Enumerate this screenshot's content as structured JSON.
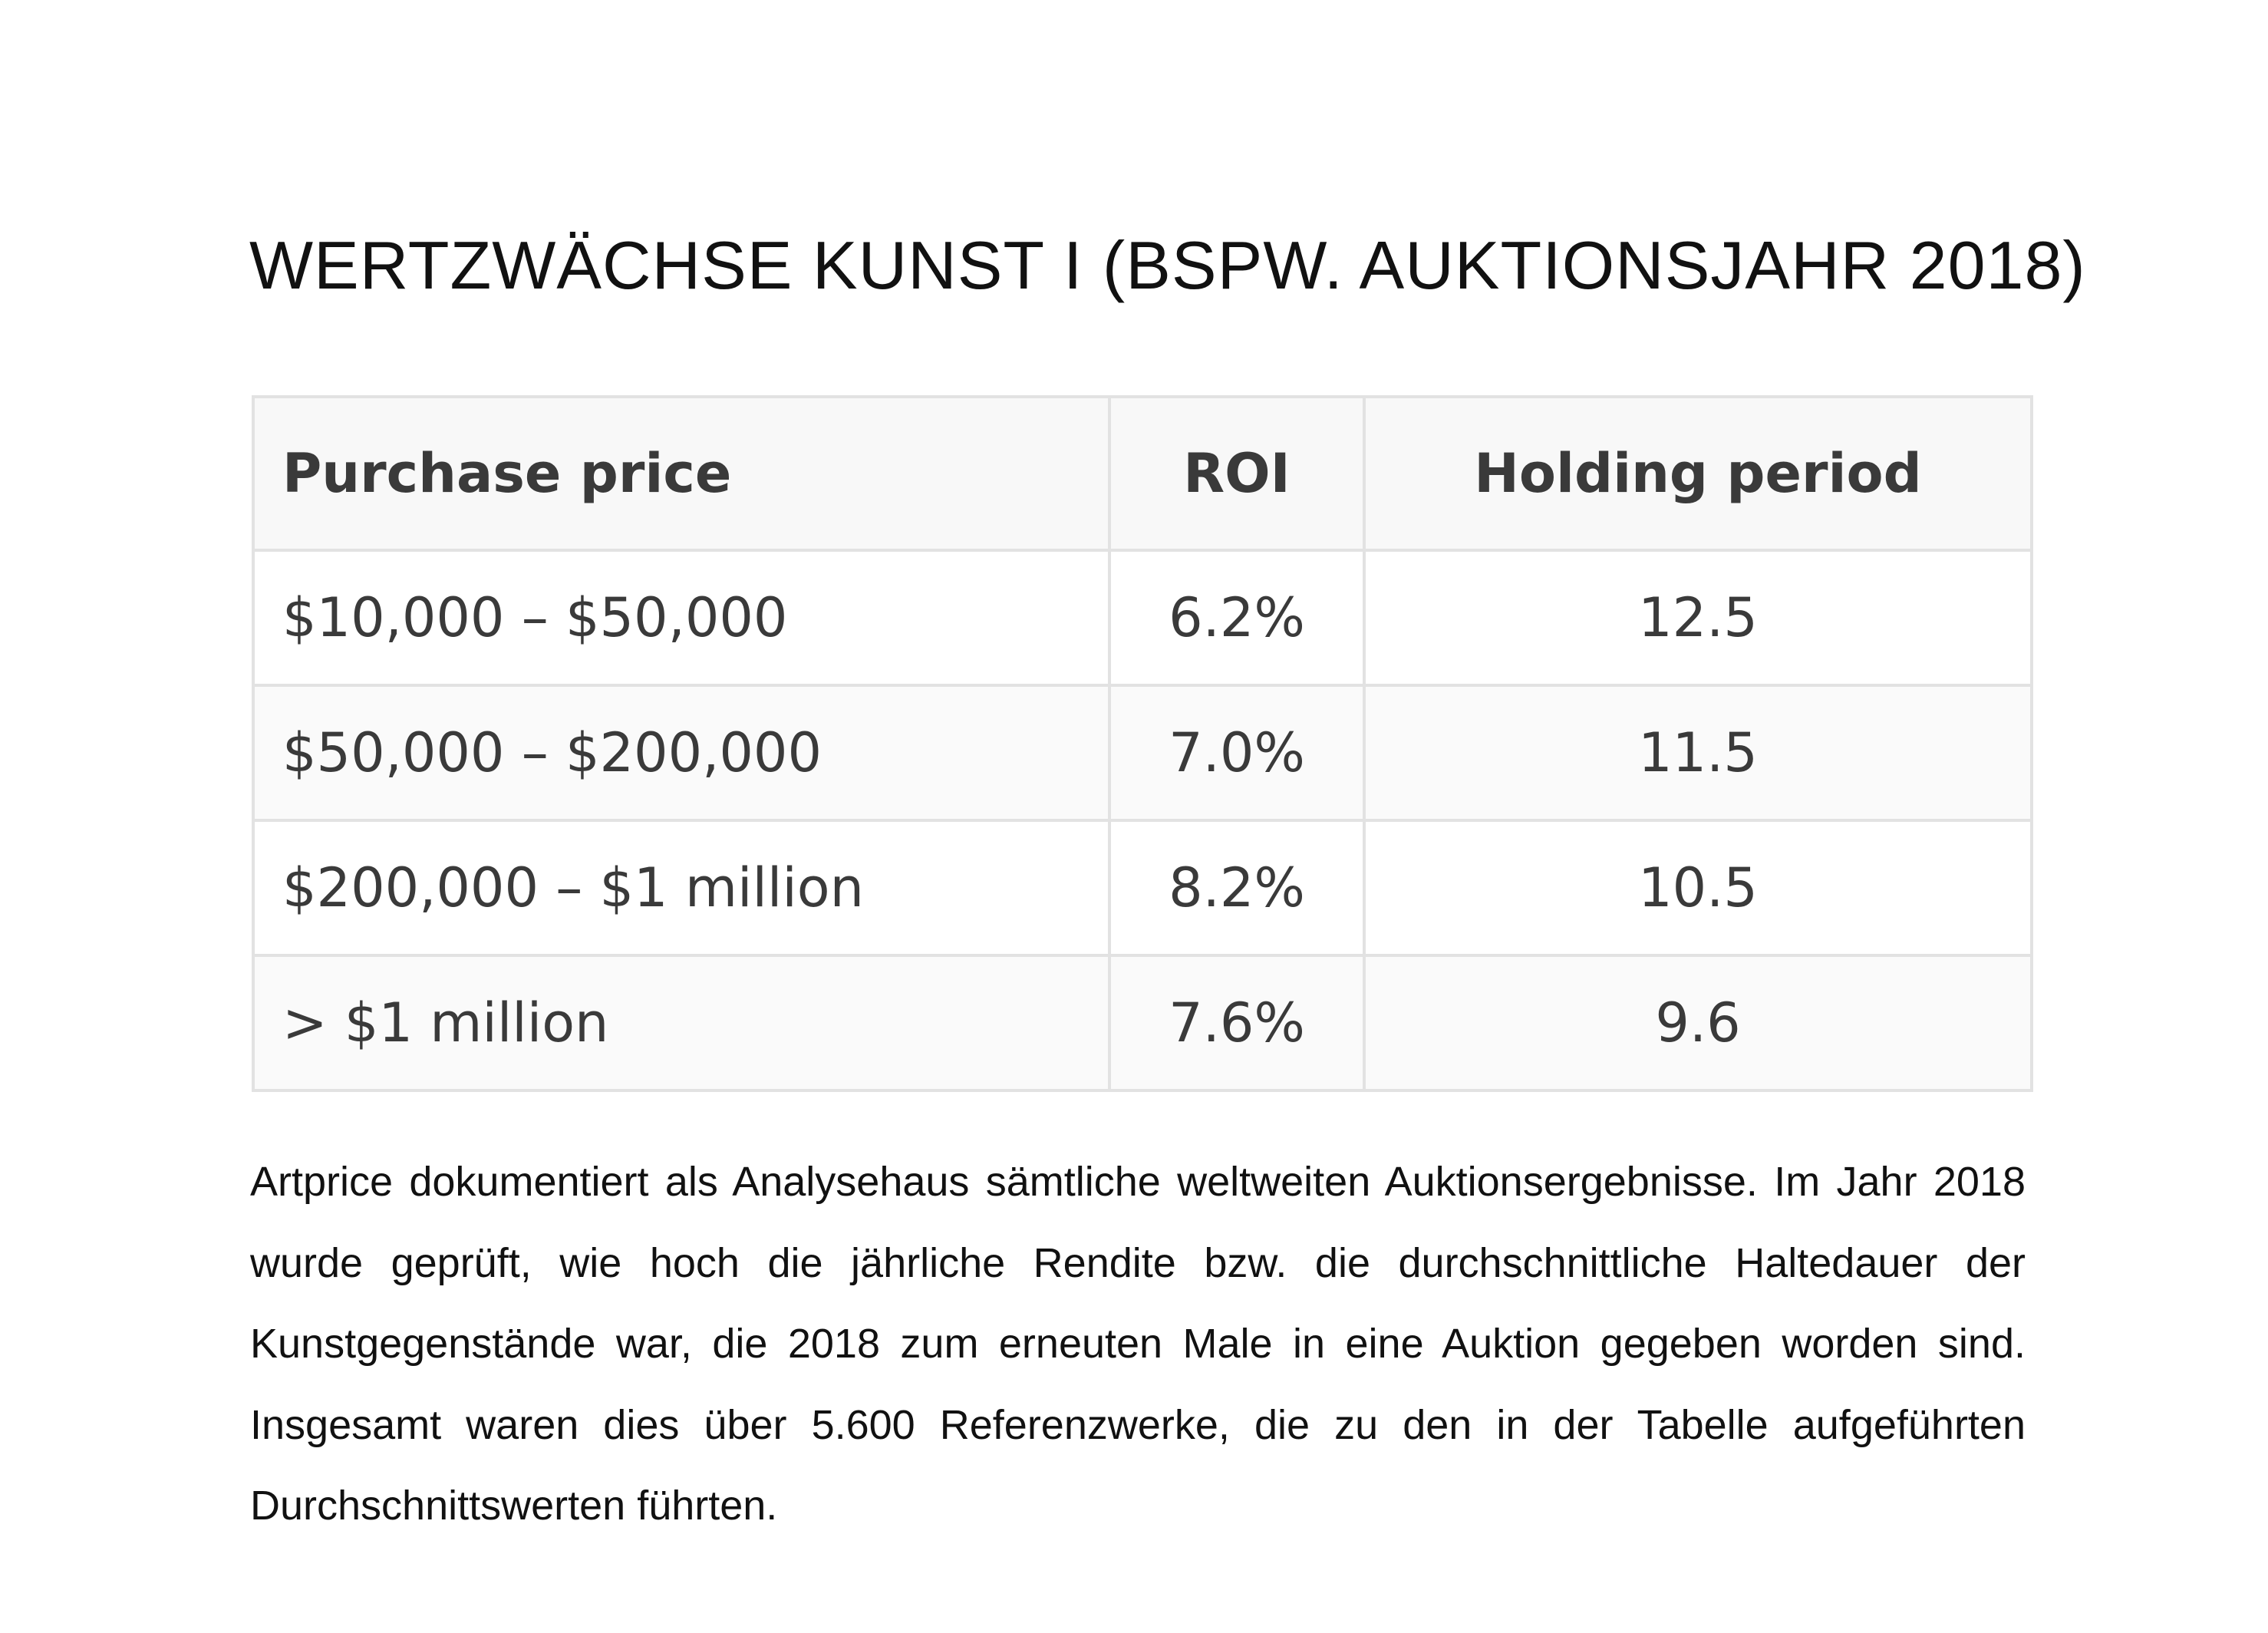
{
  "title": "WERTZWÄCHSE KUNST I (BSPW. AUKTIONSJAHR 2018)",
  "table": {
    "headers": [
      "Purchase price",
      "ROI",
      "Holding period"
    ],
    "rows": [
      [
        "$10,000 – $50,000",
        "6.2%",
        "12.5"
      ],
      [
        "$50,000 – $200,000",
        "7.0%",
        "11.5"
      ],
      [
        "$200,000 – $1 million",
        "8.2%",
        "10.5"
      ],
      [
        "> $1 million",
        "7.6%",
        "9.6"
      ]
    ]
  },
  "paragraph": "Artprice dokumentiert als Analysehaus sämtliche weltweiten Auktionsergebnisse. Im Jahr 2018 wurde geprüft, wie hoch die jährliche Rendite bzw. die durchschnittliche Haltedauer der Kunstgegenstände war, die 2018 zum erneuten Male in eine Auktion gegeben worden sind. Insgesamt waren dies über 5.600 Referenzwerke, die zu den in der Tabelle aufgeführten Durchschnittswerten führten."
}
